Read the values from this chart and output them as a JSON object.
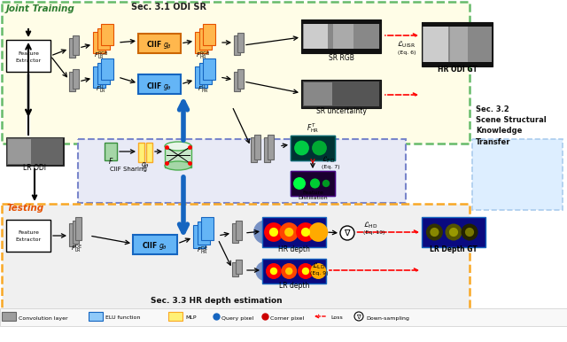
{
  "joint_label": "Joint Training",
  "sec31_label": "Sec. 3.1 ODI SR",
  "sec32_label": "Sec. 3.2\nScene Structural\nKnowledge\nTransfer",
  "sec33_label": "Sec. 3.3 HR depth estimation",
  "testing_label": "Testing",
  "bg_joint": "#fffde7",
  "bg_middle": "#e8eaf6",
  "bg_testing": "#f0f0f0",
  "border_joint": "#66bb6a",
  "border_middle": "#7986cb",
  "border_testing": "#f9a825"
}
